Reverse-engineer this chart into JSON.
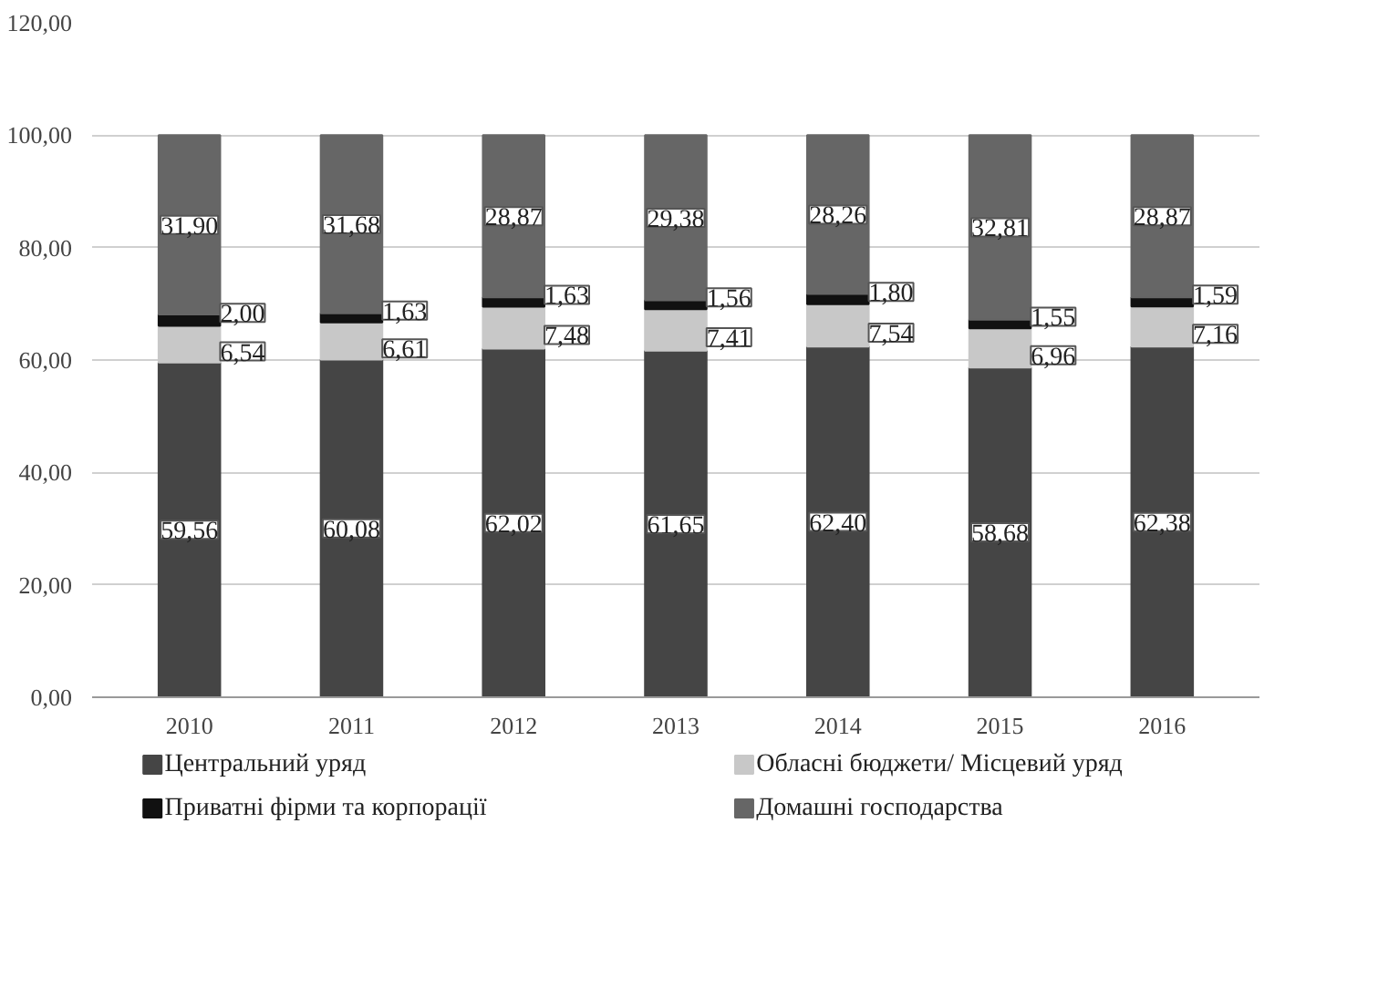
{
  "chart_data": {
    "type": "bar",
    "stacked": true,
    "categories": [
      "2010",
      "2011",
      "2012",
      "2013",
      "2014",
      "2015",
      "2016"
    ],
    "ylim": [
      0,
      120
    ],
    "yticks": [
      {
        "value": 0,
        "label": "0,00"
      },
      {
        "value": 20,
        "label": "20,00"
      },
      {
        "value": 40,
        "label": "40,00"
      },
      {
        "value": 60,
        "label": "60,00"
      },
      {
        "value": 80,
        "label": "80,00"
      },
      {
        "value": 100,
        "label": "100,00"
      },
      {
        "value": 120,
        "label": "120,00"
      }
    ],
    "grid": "y",
    "legend": "bottom",
    "series": [
      {
        "name": "Центральний уряд",
        "color": "#454545",
        "values": [
          59.56,
          60.08,
          62.02,
          61.65,
          62.4,
          58.68,
          62.38
        ],
        "value_labels": [
          "59,56",
          "60,08",
          "62,02",
          "61,65",
          "62,40",
          "58,68",
          "62,38"
        ]
      },
      {
        "name": "Обласні бюджети/ Місцевий уряд",
        "color": "#c8c8c8",
        "values": [
          6.54,
          6.61,
          7.48,
          7.41,
          7.54,
          6.96,
          7.16
        ],
        "value_labels": [
          "6,54",
          "6,61",
          "7,48",
          "7,41",
          "7,54",
          "6,96",
          "7,16"
        ]
      },
      {
        "name": "Приватні фірми та корпорації",
        "color": "#111111",
        "values": [
          2.0,
          1.63,
          1.63,
          1.56,
          1.8,
          1.55,
          1.59
        ],
        "value_labels": [
          "2,00",
          "1,63",
          "1,63",
          "1,56",
          "1,80",
          "1,55",
          "1,59"
        ]
      },
      {
        "name": "Домашні господарства",
        "color": "#666666",
        "values": [
          31.9,
          31.68,
          28.87,
          29.38,
          28.26,
          32.81,
          28.87
        ],
        "value_labels": [
          "31,90",
          "31,68",
          "28,87",
          "29,38",
          "28,26",
          "32,81",
          "28,87"
        ]
      }
    ]
  }
}
